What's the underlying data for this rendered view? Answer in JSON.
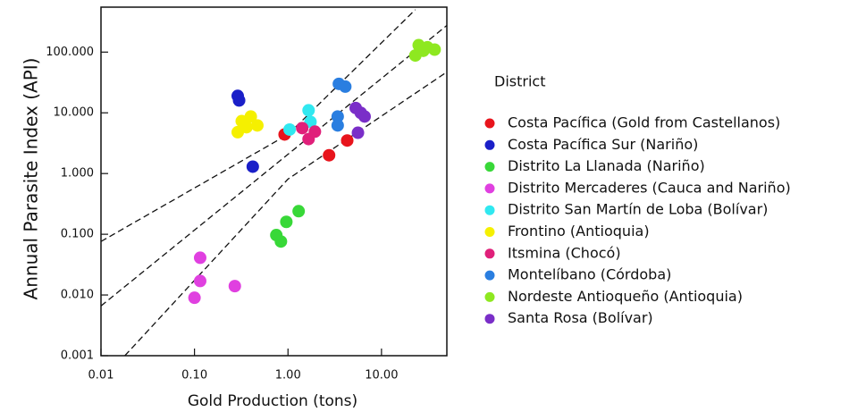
{
  "chart_data": {
    "type": "scatter",
    "x_label": "Gold Production (tons)",
    "y_label": "Annual Parasite Index (API)",
    "legend_title": "District",
    "legend_position": "right",
    "x_scale": "log",
    "y_scale": "log",
    "xlim": [
      0.01,
      50
    ],
    "ylim": [
      0.001,
      550
    ],
    "xticks": [
      0.01,
      {
        "value": 0.1,
        "label": "0.10"
      },
      {
        "value": 1,
        "label": "1.00"
      },
      {
        "value": 10,
        "label": "10.00"
      }
    ],
    "yticks": [
      0.001,
      {
        "value": 0.01,
        "label": "0.010"
      },
      {
        "value": 0.1,
        "label": "0.100"
      },
      {
        "value": 1,
        "label": "1.000"
      },
      {
        "value": 10,
        "label": "10.000"
      },
      {
        "value": 100,
        "label": "100.000"
      }
    ],
    "series": [
      {
        "name": "Costa Pacífica (Gold from Castellanos)",
        "color": "#e8141c",
        "x": [
          0.92,
          2.75,
          4.3
        ],
        "values": [
          4.4,
          2.0,
          3.5
        ]
      },
      {
        "name": "Costa Pacífica Sur (Nariño)",
        "color": "#1a1fc8",
        "x": [
          0.29,
          0.3,
          0.42
        ],
        "values": [
          19,
          16,
          1.3
        ]
      },
      {
        "name": "Distrito La Llanada (Nariño)",
        "color": "#38d838",
        "x": [
          0.75,
          0.84,
          0.96,
          1.3
        ],
        "values": [
          0.097,
          0.076,
          0.16,
          0.24
        ]
      },
      {
        "name": "Distrito Mercaderes (Cauca and Nariño)",
        "color": "#e040e0",
        "x": [
          0.115,
          0.115,
          0.1,
          0.27
        ],
        "values": [
          0.041,
          0.017,
          0.009,
          0.014
        ]
      },
      {
        "name": "Distrito San Martín de Loba (Bolívar)",
        "color": "#30e8f0",
        "x": [
          1.04,
          1.66,
          1.74
        ],
        "values": [
          5.3,
          11,
          7.1
        ]
      },
      {
        "name": "Frontino (Antioquia)",
        "color": "#f5f000",
        "x": [
          0.29,
          0.32,
          0.4,
          0.47,
          0.36
        ],
        "values": [
          4.8,
          7.3,
          8.7,
          6.2,
          5.8
        ]
      },
      {
        "name": "Itsmina (Chocó)",
        "color": "#e0207a",
        "x": [
          1.42,
          1.66,
          1.94
        ],
        "values": [
          5.6,
          3.7,
          4.9
        ]
      },
      {
        "name": "Montelíbano (Córdoba)",
        "color": "#2a7ee0",
        "x": [
          3.5,
          4.1,
          3.4,
          3.4
        ],
        "values": [
          30,
          27,
          8.7,
          6.2
        ]
      },
      {
        "name": "Nordeste Antioqueño (Antioquia)",
        "color": "#8ee820",
        "x": [
          23,
          25,
          31,
          37,
          28
        ],
        "values": [
          88,
          130,
          120,
          110,
          105
        ]
      },
      {
        "name": "Santa Rosa (Bolívar)",
        "color": "#7a2ec8",
        "x": [
          5.3,
          5.6,
          6.6,
          6.0
        ],
        "values": [
          12,
          4.7,
          8.7,
          10
        ]
      }
    ],
    "fit_lines": [
      {
        "color": "#111111",
        "x": [
          0.01,
          1,
          23
        ],
        "values": [
          0.076,
          4.4,
          500
        ]
      },
      {
        "color": "#111111",
        "x": [
          0.01,
          50
        ],
        "values": [
          0.0066,
          275
        ]
      },
      {
        "color": "#111111",
        "x": [
          0.018,
          1,
          50
        ],
        "values": [
          0.001,
          0.81,
          47
        ]
      }
    ]
  }
}
